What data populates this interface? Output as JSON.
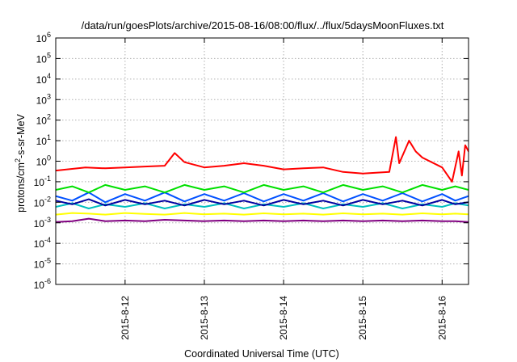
{
  "chart_data": {
    "type": "line",
    "title": "/data/run/goesPlots/archive/2015-08-16/08:00/flux/../flux/5daysMoonFluxes.txt",
    "xlabel": "Coordinated Universal Time (UTC)",
    "ylabel": {
      "before": "protons/cm",
      "sup": "2",
      "after": "-s-sr-MeV"
    },
    "y_scale": "log",
    "ylim": [
      1e-06,
      1000000.0
    ],
    "y_ticks": [
      {
        "value": 1e-06,
        "base": "10",
        "exp": "-6"
      },
      {
        "value": 1e-05,
        "base": "10",
        "exp": "-5"
      },
      {
        "value": 0.0001,
        "base": "10",
        "exp": "-4"
      },
      {
        "value": 0.001,
        "base": "10",
        "exp": "-3"
      },
      {
        "value": 0.01,
        "base": "10",
        "exp": "-2"
      },
      {
        "value": 0.1,
        "base": "10",
        "exp": "-1"
      },
      {
        "value": 1,
        "base": "10",
        "exp": "0"
      },
      {
        "value": 10,
        "base": "10",
        "exp": "1"
      },
      {
        "value": 100,
        "base": "10",
        "exp": "2"
      },
      {
        "value": 1000,
        "base": "10",
        "exp": "3"
      },
      {
        "value": 10000,
        "base": "10",
        "exp": "4"
      },
      {
        "value": 100000,
        "base": "10",
        "exp": "5"
      },
      {
        "value": 1000000,
        "base": "10",
        "exp": "6"
      }
    ],
    "xlim": [
      "2015-08-11 03:00",
      "2015-08-16 08:00"
    ],
    "x_ticks": [
      "2015-8-12",
      "2015-8-13",
      "2015-8-14",
      "2015-8-15",
      "2015-8-16"
    ],
    "grid": true,
    "legend": "none",
    "series": [
      {
        "color": "#800080",
        "values": [
          [
            "2015-08-11 03:00",
            0.0011
          ],
          [
            "2015-08-11 08:00",
            0.0012
          ],
          [
            "2015-08-11 13:00",
            0.0016
          ],
          [
            "2015-08-11 18:00",
            0.0012
          ],
          [
            "2015-08-12 00:00",
            0.0013
          ],
          [
            "2015-08-12 06:00",
            0.0012
          ],
          [
            "2015-08-12 12:00",
            0.0014
          ],
          [
            "2015-08-12 18:00",
            0.0013
          ],
          [
            "2015-08-13 00:00",
            0.0012
          ],
          [
            "2015-08-13 06:00",
            0.0013
          ],
          [
            "2015-08-13 12:00",
            0.0012
          ],
          [
            "2015-08-13 18:00",
            0.0013
          ],
          [
            "2015-08-14 00:00",
            0.0012
          ],
          [
            "2015-08-14 06:00",
            0.0013
          ],
          [
            "2015-08-14 12:00",
            0.0012
          ],
          [
            "2015-08-14 18:00",
            0.0013
          ],
          [
            "2015-08-15 00:00",
            0.0012
          ],
          [
            "2015-08-15 06:00",
            0.0013
          ],
          [
            "2015-08-15 12:00",
            0.0012
          ],
          [
            "2015-08-15 18:00",
            0.0013
          ],
          [
            "2015-08-16 00:00",
            0.0012
          ],
          [
            "2015-08-16 04:00",
            0.0012
          ],
          [
            "2015-08-16 08:00",
            0.0011
          ]
        ]
      },
      {
        "color": "#ffff00",
        "values": [
          [
            "2015-08-11 03:00",
            0.0025
          ],
          [
            "2015-08-11 08:00",
            0.003
          ],
          [
            "2015-08-11 13:00",
            0.0028
          ],
          [
            "2015-08-11 18:00",
            0.0025
          ],
          [
            "2015-08-12 00:00",
            0.003
          ],
          [
            "2015-08-12 06:00",
            0.0027
          ],
          [
            "2015-08-12 12:00",
            0.0025
          ],
          [
            "2015-08-12 18:00",
            0.003
          ],
          [
            "2015-08-13 00:00",
            0.0026
          ],
          [
            "2015-08-13 06:00",
            0.0028
          ],
          [
            "2015-08-13 12:00",
            0.0025
          ],
          [
            "2015-08-13 18:00",
            0.0029
          ],
          [
            "2015-08-14 00:00",
            0.0026
          ],
          [
            "2015-08-14 06:00",
            0.0028
          ],
          [
            "2015-08-14 12:00",
            0.0025
          ],
          [
            "2015-08-14 18:00",
            0.0029
          ],
          [
            "2015-08-15 00:00",
            0.0026
          ],
          [
            "2015-08-15 06:00",
            0.0028
          ],
          [
            "2015-08-15 12:00",
            0.0025
          ],
          [
            "2015-08-15 18:00",
            0.0029
          ],
          [
            "2015-08-16 00:00",
            0.0026
          ],
          [
            "2015-08-16 04:00",
            0.0028
          ],
          [
            "2015-08-16 08:00",
            0.0026
          ]
        ]
      },
      {
        "color": "#00bfbf",
        "values": [
          [
            "2015-08-11 03:00",
            0.006
          ],
          [
            "2015-08-11 08:00",
            0.009
          ],
          [
            "2015-08-11 13:00",
            0.005
          ],
          [
            "2015-08-11 18:00",
            0.008
          ],
          [
            "2015-08-12 00:00",
            0.006
          ],
          [
            "2015-08-12 06:00",
            0.009
          ],
          [
            "2015-08-12 12:00",
            0.005
          ],
          [
            "2015-08-12 18:00",
            0.008
          ],
          [
            "2015-08-13 00:00",
            0.006
          ],
          [
            "2015-08-13 06:00",
            0.009
          ],
          [
            "2015-08-13 12:00",
            0.005
          ],
          [
            "2015-08-13 18:00",
            0.008
          ],
          [
            "2015-08-14 00:00",
            0.006
          ],
          [
            "2015-08-14 06:00",
            0.009
          ],
          [
            "2015-08-14 12:00",
            0.005
          ],
          [
            "2015-08-14 18:00",
            0.008
          ],
          [
            "2015-08-15 00:00",
            0.006
          ],
          [
            "2015-08-15 06:00",
            0.009
          ],
          [
            "2015-08-15 12:00",
            0.005
          ],
          [
            "2015-08-15 18:00",
            0.008
          ],
          [
            "2015-08-16 00:00",
            0.006
          ],
          [
            "2015-08-16 04:00",
            0.009
          ],
          [
            "2015-08-16 08:00",
            0.007
          ]
        ]
      },
      {
        "color": "#0000a0",
        "values": [
          [
            "2015-08-11 03:00",
            0.012
          ],
          [
            "2015-08-11 08:00",
            0.008
          ],
          [
            "2015-08-11 13:00",
            0.014
          ],
          [
            "2015-08-11 18:00",
            0.007
          ],
          [
            "2015-08-12 00:00",
            0.013
          ],
          [
            "2015-08-12 06:00",
            0.008
          ],
          [
            "2015-08-12 12:00",
            0.012
          ],
          [
            "2015-08-12 18:00",
            0.007
          ],
          [
            "2015-08-13 00:00",
            0.013
          ],
          [
            "2015-08-13 06:00",
            0.008
          ],
          [
            "2015-08-13 12:00",
            0.012
          ],
          [
            "2015-08-13 18:00",
            0.007
          ],
          [
            "2015-08-14 00:00",
            0.013
          ],
          [
            "2015-08-14 06:00",
            0.008
          ],
          [
            "2015-08-14 12:00",
            0.012
          ],
          [
            "2015-08-14 18:00",
            0.007
          ],
          [
            "2015-08-15 00:00",
            0.013
          ],
          [
            "2015-08-15 06:00",
            0.008
          ],
          [
            "2015-08-15 12:00",
            0.012
          ],
          [
            "2015-08-15 18:00",
            0.007
          ],
          [
            "2015-08-16 00:00",
            0.013
          ],
          [
            "2015-08-16 04:00",
            0.008
          ],
          [
            "2015-08-16 08:00",
            0.01
          ]
        ]
      },
      {
        "color": "#0050ff",
        "values": [
          [
            "2015-08-11 03:00",
            0.02
          ],
          [
            "2015-08-11 08:00",
            0.012
          ],
          [
            "2015-08-11 13:00",
            0.03
          ],
          [
            "2015-08-11 18:00",
            0.01
          ],
          [
            "2015-08-12 00:00",
            0.025
          ],
          [
            "2015-08-12 06:00",
            0.012
          ],
          [
            "2015-08-12 12:00",
            0.03
          ],
          [
            "2015-08-12 18:00",
            0.011
          ],
          [
            "2015-08-13 00:00",
            0.025
          ],
          [
            "2015-08-13 06:00",
            0.012
          ],
          [
            "2015-08-13 12:00",
            0.028
          ],
          [
            "2015-08-13 18:00",
            0.011
          ],
          [
            "2015-08-14 00:00",
            0.025
          ],
          [
            "2015-08-14 06:00",
            0.012
          ],
          [
            "2015-08-14 12:00",
            0.028
          ],
          [
            "2015-08-14 18:00",
            0.011
          ],
          [
            "2015-08-15 00:00",
            0.025
          ],
          [
            "2015-08-15 06:00",
            0.012
          ],
          [
            "2015-08-15 12:00",
            0.028
          ],
          [
            "2015-08-15 18:00",
            0.011
          ],
          [
            "2015-08-16 00:00",
            0.025
          ],
          [
            "2015-08-16 04:00",
            0.012
          ],
          [
            "2015-08-16 08:00",
            0.02
          ]
        ]
      },
      {
        "color": "#00e000",
        "values": [
          [
            "2015-08-11 03:00",
            0.04
          ],
          [
            "2015-08-11 08:00",
            0.06
          ],
          [
            "2015-08-11 13:00",
            0.03
          ],
          [
            "2015-08-11 18:00",
            0.07
          ],
          [
            "2015-08-12 00:00",
            0.04
          ],
          [
            "2015-08-12 06:00",
            0.06
          ],
          [
            "2015-08-12 12:00",
            0.03
          ],
          [
            "2015-08-12 18:00",
            0.07
          ],
          [
            "2015-08-13 00:00",
            0.04
          ],
          [
            "2015-08-13 06:00",
            0.06
          ],
          [
            "2015-08-13 12:00",
            0.03
          ],
          [
            "2015-08-13 18:00",
            0.07
          ],
          [
            "2015-08-14 00:00",
            0.04
          ],
          [
            "2015-08-14 06:00",
            0.06
          ],
          [
            "2015-08-14 12:00",
            0.03
          ],
          [
            "2015-08-14 18:00",
            0.07
          ],
          [
            "2015-08-15 00:00",
            0.04
          ],
          [
            "2015-08-15 06:00",
            0.06
          ],
          [
            "2015-08-15 12:00",
            0.03
          ],
          [
            "2015-08-15 18:00",
            0.07
          ],
          [
            "2015-08-16 00:00",
            0.04
          ],
          [
            "2015-08-16 04:00",
            0.06
          ],
          [
            "2015-08-16 08:00",
            0.04
          ]
        ]
      },
      {
        "color": "#ff0000",
        "values": [
          [
            "2015-08-11 03:00",
            0.35
          ],
          [
            "2015-08-11 12:00",
            0.5
          ],
          [
            "2015-08-11 18:00",
            0.45
          ],
          [
            "2015-08-12 00:00",
            0.5
          ],
          [
            "2015-08-12 06:00",
            0.55
          ],
          [
            "2015-08-12 12:00",
            0.6
          ],
          [
            "2015-08-12 15:00",
            2.5
          ],
          [
            "2015-08-12 18:00",
            0.9
          ],
          [
            "2015-08-13 00:00",
            0.5
          ],
          [
            "2015-08-13 06:00",
            0.6
          ],
          [
            "2015-08-13 12:00",
            0.8
          ],
          [
            "2015-08-13 18:00",
            0.6
          ],
          [
            "2015-08-14 00:00",
            0.4
          ],
          [
            "2015-08-14 06:00",
            0.45
          ],
          [
            "2015-08-14 12:00",
            0.5
          ],
          [
            "2015-08-14 18:00",
            0.3
          ],
          [
            "2015-08-15 00:00",
            0.25
          ],
          [
            "2015-08-15 08:00",
            0.3
          ],
          [
            "2015-08-15 10:00",
            15
          ],
          [
            "2015-08-15 11:00",
            0.8
          ],
          [
            "2015-08-15 14:00",
            10
          ],
          [
            "2015-08-15 16:00",
            3
          ],
          [
            "2015-08-15 18:00",
            1.5
          ],
          [
            "2015-08-16 00:00",
            0.5
          ],
          [
            "2015-08-16 03:00",
            0.1
          ],
          [
            "2015-08-16 05:00",
            3
          ],
          [
            "2015-08-16 06:00",
            0.2
          ],
          [
            "2015-08-16 07:00",
            6
          ],
          [
            "2015-08-16 08:00",
            3
          ]
        ]
      }
    ]
  }
}
